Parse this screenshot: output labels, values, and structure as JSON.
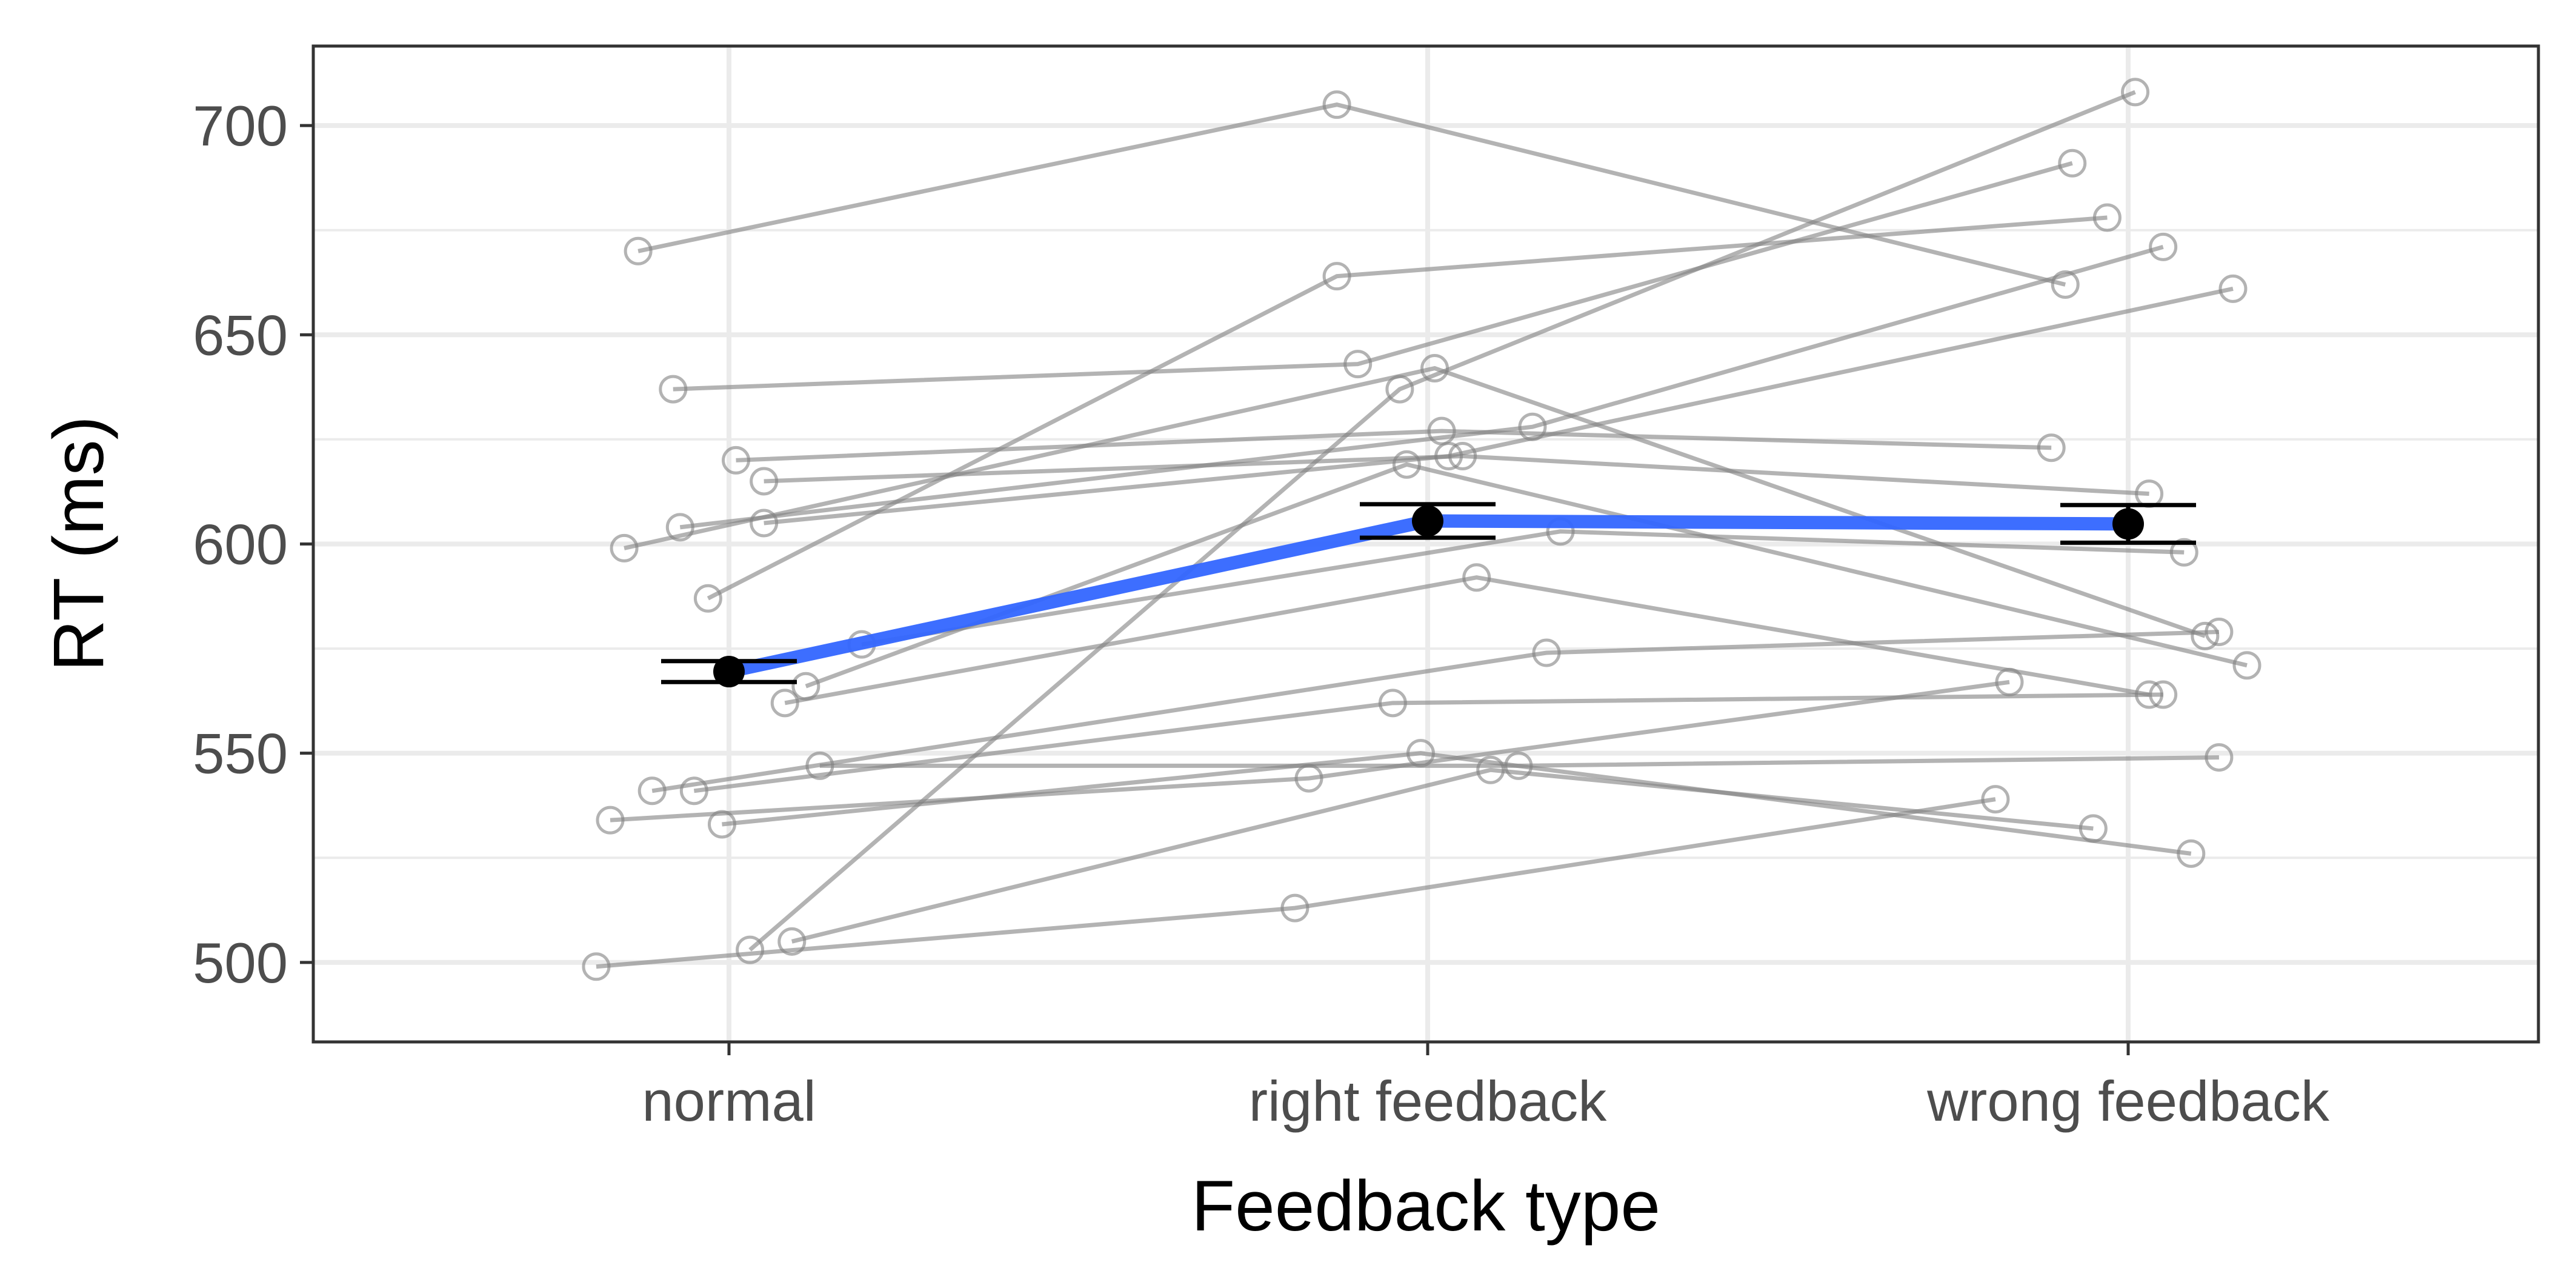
{
  "chart_data": {
    "type": "line",
    "xlabel": "Feedback type",
    "ylabel": "RT (ms)",
    "categories": [
      "normal",
      "right feedback",
      "wrong feedback"
    ],
    "ylim": [
      481,
      719
    ],
    "yticks": [
      500,
      550,
      600,
      650,
      700
    ],
    "grid": true,
    "subjects": [
      {
        "x_offset": [
          -0.13,
          -0.13,
          -0.09
        ],
        "values": [
          670,
          705,
          662
        ]
      },
      {
        "x_offset": [
          -0.08,
          -0.1,
          -0.08
        ],
        "values": [
          637,
          643,
          691
        ]
      },
      {
        "x_offset": [
          0.01,
          0.02,
          -0.11
        ],
        "values": [
          620,
          627,
          623
        ]
      },
      {
        "x_offset": [
          -0.07,
          0.15,
          0.05
        ],
        "values": [
          604,
          628,
          671
        ]
      },
      {
        "x_offset": [
          0.05,
          0.05,
          0.03
        ],
        "values": [
          615,
          621,
          612
        ]
      },
      {
        "x_offset": [
          0.05,
          0.03,
          0.15
        ],
        "values": [
          605,
          621,
          661
        ]
      },
      {
        "x_offset": [
          -0.15,
          0.01,
          0.11
        ],
        "values": [
          599,
          642,
          578
        ]
      },
      {
        "x_offset": [
          -0.03,
          -0.13,
          -0.03
        ],
        "values": [
          587,
          664,
          678
        ]
      },
      {
        "x_offset": [
          0.19,
          0.19,
          0.08
        ],
        "values": [
          576,
          603,
          598
        ]
      },
      {
        "x_offset": [
          0.11,
          -0.03,
          0.17
        ],
        "values": [
          566,
          619,
          571
        ]
      },
      {
        "x_offset": [
          0.08,
          0.07,
          0.03
        ],
        "values": [
          562,
          592,
          564
        ]
      },
      {
        "x_offset": [
          -0.11,
          0.17,
          0.13
        ],
        "values": [
          541,
          574,
          579
        ]
      },
      {
        "x_offset": [
          -0.05,
          -0.05,
          0.05
        ],
        "values": [
          541,
          562,
          564
        ]
      },
      {
        "x_offset": [
          0.13,
          0.13,
          0.13
        ],
        "values": [
          547,
          547,
          549
        ]
      },
      {
        "x_offset": [
          -0.17,
          -0.17,
          -0.17
        ],
        "values": [
          534,
          544,
          567
        ]
      },
      {
        "x_offset": [
          -0.01,
          -0.01,
          0.09
        ],
        "values": [
          533,
          550,
          526
        ]
      },
      {
        "x_offset": [
          0.09,
          0.09,
          -0.05
        ],
        "values": [
          505,
          546,
          532
        ]
      },
      {
        "x_offset": [
          -0.19,
          -0.19,
          -0.19
        ],
        "values": [
          499,
          513,
          539
        ]
      },
      {
        "x_offset": [
          0.03,
          -0.04,
          0.01
        ],
        "values": [
          503,
          637,
          708
        ]
      }
    ],
    "mean_series": {
      "values": [
        569.5,
        605.5,
        604.8
      ],
      "error": [
        2.5,
        4.0,
        4.5
      ],
      "color": "#3366ff",
      "point_color": "#000000"
    },
    "subject_color": "#808080"
  }
}
